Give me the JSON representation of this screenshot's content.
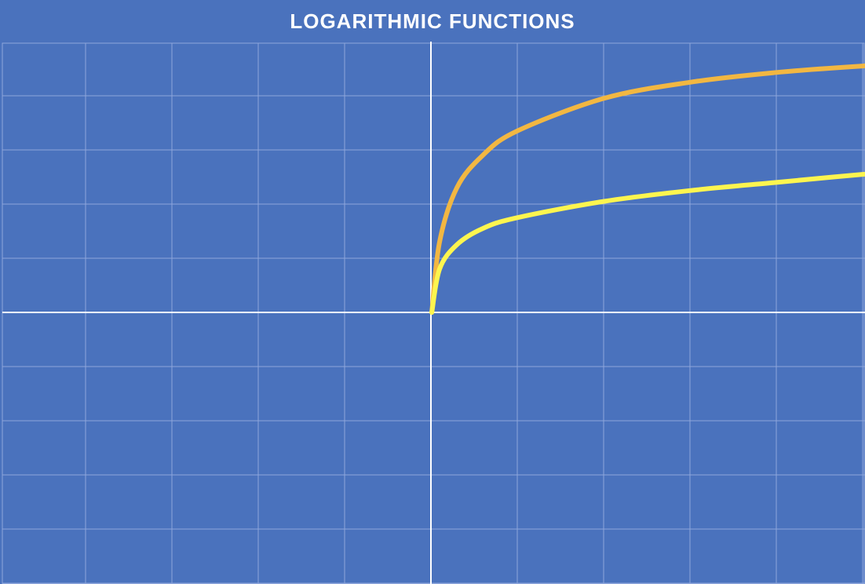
{
  "colors": {
    "background": "#4a72bd",
    "grid": "#8ea6dc",
    "axis": "#ffffff",
    "curve_orange": "#f2b742",
    "curve_yellow": "#fdf54f"
  },
  "chart_data": {
    "type": "line",
    "title": "LOGARITHMIC FUNCTIONS",
    "xlabel": "",
    "ylabel": "",
    "xlim": [
      0,
      10
    ],
    "ylim": [
      -5,
      5
    ],
    "grid": true,
    "x_axis_at_y": 0,
    "y_axis_at_x": 0,
    "series": [
      {
        "color": "#f2b742",
        "x": [
          0.01,
          0.1,
          0.3,
          0.6,
          1,
          2,
          3,
          4,
          5,
          6,
          7,
          8,
          9,
          10
        ],
        "y": [
          0.0,
          1.3,
          2.3,
          2.9,
          3.35,
          3.95,
          4.25,
          4.43,
          4.55,
          4.63,
          4.68,
          4.72,
          4.74,
          4.75
        ]
      },
      {
        "color": "#fdf54f",
        "x": [
          0.01,
          0.1,
          0.3,
          0.6,
          1,
          2,
          3,
          4,
          5,
          6,
          7,
          8,
          9,
          10
        ],
        "y": [
          0.0,
          0.8,
          1.25,
          1.55,
          1.75,
          2.05,
          2.25,
          2.4,
          2.55,
          2.67,
          2.78,
          2.88,
          2.97,
          3.0
        ]
      }
    ]
  }
}
